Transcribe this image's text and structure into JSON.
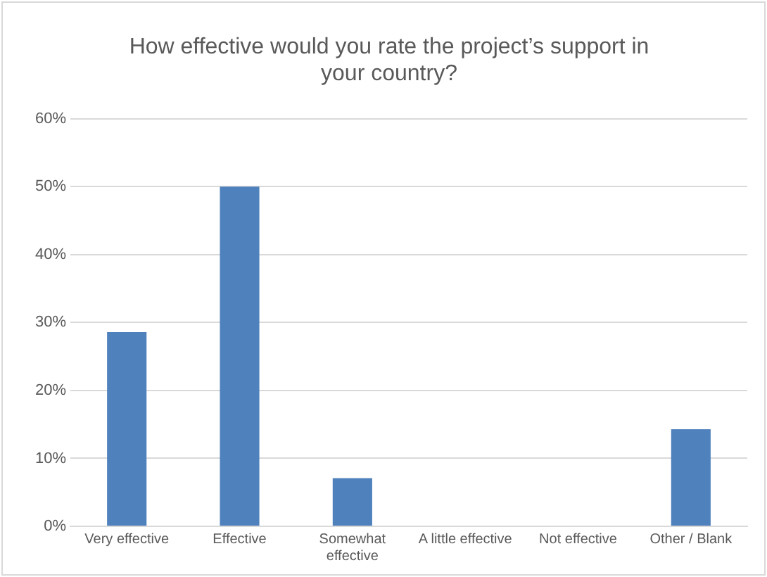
{
  "chart_data": {
    "type": "bar",
    "title": "How effective would you rate the project’s support in your country?",
    "categories": [
      "Very effective",
      "Effective",
      "Somewhat effective",
      "A little effective",
      "Not effective",
      "Other / Blank"
    ],
    "values": [
      28.6,
      50,
      7.1,
      0,
      0,
      14.3
    ],
    "color": "#4f81bd",
    "ylim": [
      0,
      60
    ],
    "yticks": [
      {
        "value": 0,
        "label": "0%"
      },
      {
        "value": 10,
        "label": "10%"
      },
      {
        "value": 20,
        "label": "20%"
      },
      {
        "value": 30,
        "label": "30%"
      },
      {
        "value": 40,
        "label": "40%"
      },
      {
        "value": 50,
        "label": "50%"
      },
      {
        "value": 60,
        "label": "60%"
      }
    ],
    "grid": "y",
    "legend": false
  }
}
